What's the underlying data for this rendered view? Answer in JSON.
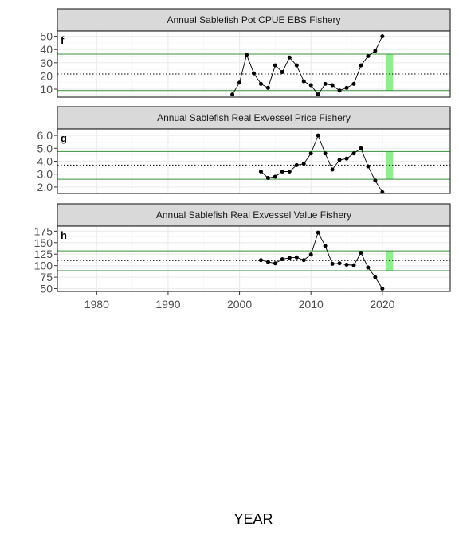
{
  "chart_data": [
    {
      "type": "line",
      "tag": "f",
      "title": "Annual Sablefish Pot CPUE EBS Fishery",
      "ylim": [
        4,
        54
      ],
      "yticks": [
        10,
        20,
        30,
        40,
        50
      ],
      "ytick_labels": [
        "10",
        "20",
        "30",
        "40",
        "50"
      ],
      "reference_lines": {
        "mean": 21.5,
        "upper_sd": 36.5,
        "lower_sd": 9.0
      },
      "x": [
        1999,
        2000,
        2001,
        2002,
        2003,
        2004,
        2005,
        2006,
        2007,
        2008,
        2009,
        2010,
        2011,
        2012,
        2013,
        2014,
        2015,
        2016,
        2017,
        2018,
        2019,
        2020
      ],
      "values": [
        6,
        15,
        36,
        22,
        14,
        11,
        28,
        23,
        34,
        28,
        16,
        13,
        6,
        14,
        13,
        9,
        11,
        14,
        28,
        35,
        39,
        50
      ]
    },
    {
      "type": "line",
      "tag": "g",
      "title": "Annual Sablefish Real Exvessel Price Fishery",
      "ylim": [
        1.5,
        6.5
      ],
      "yticks": [
        2,
        3,
        4,
        5,
        6
      ],
      "ytick_labels": [
        "2.0",
        "3.0",
        "4.0",
        "5.0",
        "6.0"
      ],
      "reference_lines": {
        "mean": 3.7,
        "upper_sd": 4.75,
        "lower_sd": 2.6
      },
      "x": [
        2003,
        2004,
        2005,
        2006,
        2007,
        2008,
        2009,
        2010,
        2011,
        2012,
        2013,
        2014,
        2015,
        2016,
        2017,
        2018,
        2019,
        2020
      ],
      "values": [
        3.2,
        2.7,
        2.8,
        3.2,
        3.2,
        3.7,
        3.8,
        4.6,
        6.0,
        4.6,
        3.35,
        4.1,
        4.2,
        4.6,
        5.0,
        3.6,
        2.5,
        1.6
      ]
    },
    {
      "type": "line",
      "tag": "h",
      "title": "Annual Sablefish Real Exvessel Value Fishery",
      "ylim": [
        44,
        186
      ],
      "yticks": [
        50,
        75,
        100,
        125,
        150,
        175
      ],
      "ytick_labels": [
        "50",
        "75",
        "100",
        "125",
        "150",
        "175"
      ],
      "reference_lines": {
        "mean": 111,
        "upper_sd": 132,
        "lower_sd": 89
      },
      "x": [
        2003,
        2004,
        2005,
        2006,
        2007,
        2008,
        2009,
        2010,
        2011,
        2012,
        2013,
        2014,
        2015,
        2016,
        2017,
        2018,
        2019,
        2020
      ],
      "values": [
        112,
        108,
        105,
        114,
        117,
        118,
        112,
        124,
        172,
        143,
        104,
        105,
        102,
        101,
        128,
        96,
        75,
        50
      ]
    }
  ],
  "shared_x": {
    "xlim": [
      1974.5,
      2029.5
    ],
    "xticks": [
      1980,
      1990,
      2000,
      2010,
      2020
    ],
    "xtick_labels": [
      "1980",
      "1990",
      "2000",
      "2010",
      "2020"
    ],
    "xlabel": "YEAR",
    "highlight_span": [
      2020.5,
      2021.5
    ]
  },
  "colors": {
    "strip_fill": "#d9d9d9",
    "panel_border": "#333333",
    "grid_major": "#ebebeb",
    "grid_minor": "#f4f4f4",
    "sd_line": "#3a8f3a",
    "mean_line": "#000000",
    "highlight": "#90ee90",
    "series": "#000000"
  }
}
